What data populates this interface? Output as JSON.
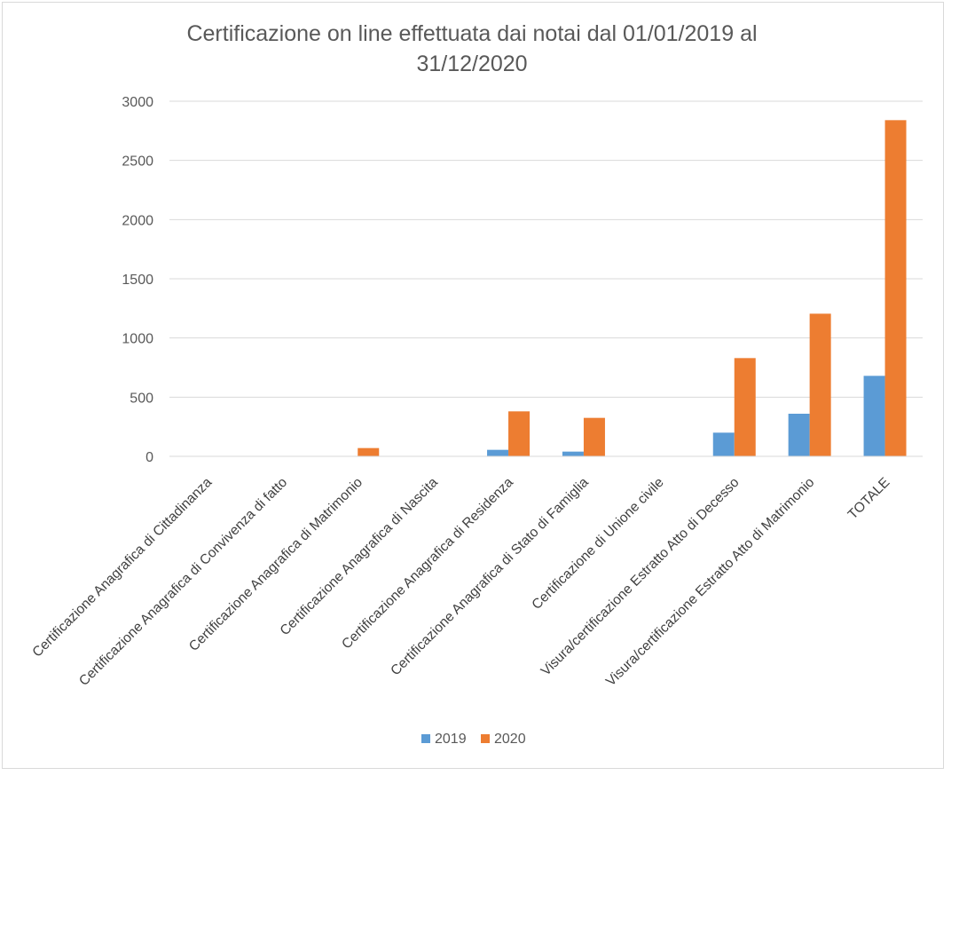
{
  "chart_data": {
    "type": "bar",
    "title": "Certificazione on line effettuata dai notai dal 01/01/2019 al 31/12/2020",
    "title_lines": [
      "Certificazione on line effettuata dai notai dal 01/01/2019 al",
      "31/12/2020"
    ],
    "xlabel": "",
    "ylabel": "",
    "ylim": [
      0,
      3000
    ],
    "yticks": [
      0,
      500,
      1000,
      1500,
      2000,
      2500,
      3000
    ],
    "grid": true,
    "legend_position": "bottom",
    "categories": [
      "Certificazione Anagrafica di Cittadinanza",
      "Certificazione Anagrafica di Convivenza di fatto",
      "Certificazione Anagrafica di Matrimonio",
      "Certificazione Anagrafica di Nascita",
      "Certificazione Anagrafica di Residenza",
      "Certificazione Anagrafica di Stato di Famiglia",
      "Certificazione di Unione civile",
      "Visura/certificazione Estratto Atto di Decesso",
      "Visura/certificazione Estratto Atto di Matrimonio",
      "TOTALE"
    ],
    "series": [
      {
        "name": "2019",
        "color": "#5b9bd5",
        "values": [
          0,
          0,
          0,
          0,
          55,
          40,
          0,
          200,
          360,
          680
        ]
      },
      {
        "name": "2020",
        "color": "#ed7d31",
        "values": [
          0,
          0,
          70,
          0,
          380,
          325,
          0,
          830,
          1205,
          2840
        ]
      }
    ]
  }
}
